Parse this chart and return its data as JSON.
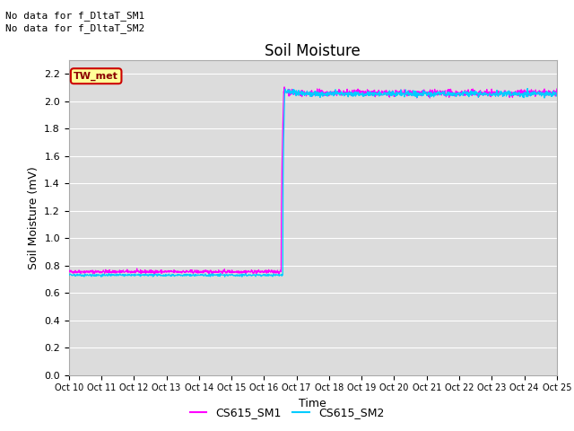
{
  "title": "Soil Moisture",
  "ylabel": "Soil Moisture (mV)",
  "xlabel": "Time",
  "annotation1": "No data for f_DltaT_SM1",
  "annotation2": "No data for f_DltaT_SM2",
  "tw_met_label": "TW_met",
  "legend_labels": [
    "CS615_SM1",
    "CS615_SM2"
  ],
  "line1_color": "#FF00FF",
  "line2_color": "#00CCFF",
  "background_color": "#DCDCDC",
  "ylim": [
    0.0,
    2.3
  ],
  "yticks": [
    0.0,
    0.2,
    0.4,
    0.6,
    0.8,
    1.0,
    1.2,
    1.4,
    1.6,
    1.8,
    2.0,
    2.2
  ],
  "title_fontsize": 12,
  "axis_fontsize": 9,
  "tick_fontsize": 8,
  "pre_jump_val1": 0.755,
  "pre_jump_val2": 0.73,
  "post_jump_val1": 2.06,
  "post_jump_val2": 2.055
}
